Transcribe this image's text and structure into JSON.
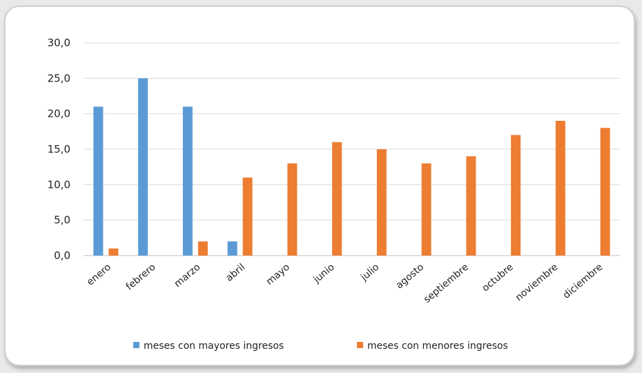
{
  "chart_data": {
    "type": "bar",
    "categories": [
      "enero",
      "febrero",
      "marzo",
      "abril",
      "mayo",
      "junio",
      "julio",
      "agosto",
      "septiembre",
      "octubre",
      "noviembre",
      "diciembre"
    ],
    "series": [
      {
        "name": "meses con mayores ingresos",
        "color": "#5b9bd5",
        "values": [
          21,
          25,
          21,
          2,
          null,
          null,
          null,
          null,
          null,
          null,
          null,
          null
        ]
      },
      {
        "name": "meses con menores ingresos",
        "color": "#ed7d31",
        "values": [
          1,
          null,
          2,
          11,
          13,
          16,
          15,
          13,
          14,
          17,
          19,
          18
        ]
      }
    ],
    "yticks": [
      "0,0",
      "5,0",
      "10,0",
      "15,0",
      "20,0",
      "25,0",
      "30,0"
    ],
    "ylim": [
      0,
      30
    ],
    "grid": true,
    "legend": "bottom-center"
  }
}
